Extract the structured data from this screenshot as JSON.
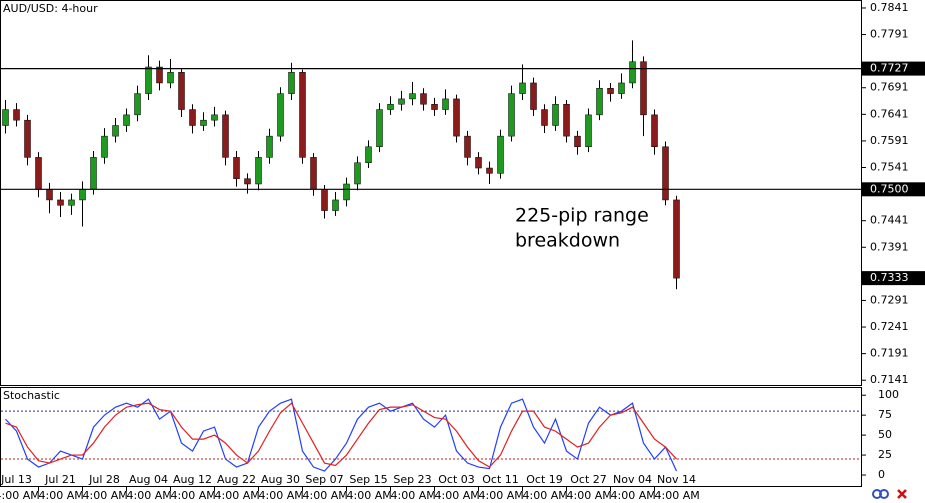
{
  "chart_data": [
    {
      "type": "candlestick",
      "title": "AUD/USD: 4-hour",
      "categories": [
        null,
        "Jul 13",
        null,
        null,
        null,
        "Jul 21",
        null,
        null,
        null,
        "Jul 28",
        null,
        null,
        null,
        "Aug 04",
        null,
        null,
        null,
        "Aug 12",
        null,
        null,
        null,
        "Aug 22",
        null,
        null,
        null,
        "Aug 30",
        null,
        null,
        null,
        "Sep 07",
        null,
        null,
        null,
        "Sep 15",
        null,
        null,
        null,
        "Sep 23",
        null,
        null,
        null,
        "Oct 03",
        null,
        null,
        null,
        "Oct 11",
        null,
        null,
        null,
        "Oct 19",
        null,
        null,
        null,
        "Oct 27",
        null,
        null,
        null,
        "Nov 04",
        null,
        null,
        null,
        "Nov 14"
      ],
      "time_label": "4:00 AM",
      "open": [
        0.762,
        0.765,
        0.763,
        0.756,
        0.75,
        0.748,
        0.747,
        0.748,
        0.75,
        0.756,
        0.76,
        0.762,
        0.764,
        0.768,
        0.773,
        0.77,
        0.772,
        0.765,
        0.762,
        0.763,
        0.764,
        0.756,
        0.752,
        0.751,
        0.756,
        0.76,
        0.768,
        0.772,
        0.756,
        0.75,
        0.746,
        0.748,
        0.751,
        0.755,
        0.758,
        0.765,
        0.766,
        0.767,
        0.768,
        0.766,
        0.765,
        0.767,
        0.76,
        0.756,
        0.754,
        0.753,
        0.76,
        0.768,
        0.77,
        0.765,
        0.762,
        0.766,
        0.76,
        0.758,
        0.764,
        0.769,
        0.768,
        0.77,
        0.774,
        0.764,
        0.758,
        0.748
      ],
      "high": [
        0.7668,
        0.7662,
        0.764,
        0.757,
        0.7512,
        0.7495,
        0.7492,
        0.7515,
        0.7572,
        0.7615,
        0.7634,
        0.7652,
        0.7695,
        0.7752,
        0.7742,
        0.7745,
        0.7728,
        0.766,
        0.7645,
        0.7655,
        0.7648,
        0.7572,
        0.753,
        0.7572,
        0.7614,
        0.7692,
        0.7738,
        0.7725,
        0.7568,
        0.7508,
        0.7495,
        0.7522,
        0.7562,
        0.7592,
        0.7662,
        0.7675,
        0.7685,
        0.7702,
        0.769,
        0.7672,
        0.7688,
        0.7678,
        0.761,
        0.757,
        0.7552,
        0.7612,
        0.7695,
        0.7735,
        0.771,
        0.766,
        0.7675,
        0.7668,
        0.761,
        0.7652,
        0.7705,
        0.77,
        0.7718,
        0.778,
        0.775,
        0.765,
        0.759,
        0.7488
      ],
      "low": [
        0.7605,
        0.7618,
        0.7545,
        0.7485,
        0.7455,
        0.7448,
        0.7452,
        0.743,
        0.749,
        0.7548,
        0.7588,
        0.7608,
        0.7628,
        0.7668,
        0.7686,
        0.769,
        0.7636,
        0.7605,
        0.761,
        0.7618,
        0.7545,
        0.7505,
        0.7492,
        0.7498,
        0.7548,
        0.759,
        0.7668,
        0.7548,
        0.7488,
        0.7445,
        0.745,
        0.7468,
        0.7498,
        0.754,
        0.757,
        0.764,
        0.7648,
        0.7658,
        0.7648,
        0.7638,
        0.764,
        0.7588,
        0.7545,
        0.7528,
        0.751,
        0.752,
        0.759,
        0.7668,
        0.7638,
        0.7606,
        0.761,
        0.7588,
        0.7565,
        0.757,
        0.763,
        0.7665,
        0.767,
        0.769,
        0.76,
        0.7565,
        0.747,
        0.7312
      ],
      "close": [
        0.765,
        0.763,
        0.756,
        0.75,
        0.748,
        0.747,
        0.748,
        0.75,
        0.756,
        0.76,
        0.762,
        0.764,
        0.768,
        0.773,
        0.77,
        0.772,
        0.765,
        0.762,
        0.763,
        0.764,
        0.756,
        0.752,
        0.751,
        0.756,
        0.76,
        0.768,
        0.772,
        0.756,
        0.75,
        0.746,
        0.748,
        0.751,
        0.755,
        0.758,
        0.765,
        0.766,
        0.767,
        0.768,
        0.766,
        0.765,
        0.767,
        0.76,
        0.756,
        0.754,
        0.753,
        0.76,
        0.768,
        0.77,
        0.765,
        0.762,
        0.766,
        0.76,
        0.758,
        0.764,
        0.769,
        0.768,
        0.77,
        0.774,
        0.764,
        0.758,
        0.748,
        0.7333
      ],
      "up_color": "#1e9a1e",
      "down_color": "#8b1c1c",
      "ylim": [
        0.7132,
        0.7856
      ],
      "yticks": [
        0.7841,
        0.7791,
        0.7691,
        0.7641,
        0.7591,
        0.7541,
        0.7441,
        0.7391,
        0.7291,
        0.7241,
        0.7191,
        0.7141
      ],
      "price_labels": [
        0.7727,
        {
          "value": 0.75,
          "label": "0.7500"
        },
        0.7333
      ],
      "price_label_lines": [
        true,
        true,
        false
      ],
      "annotation": [
        "225-pip range",
        "breakdown"
      ]
    },
    {
      "type": "line",
      "title": "Stochastic",
      "series": [
        {
          "color": "#2040ff",
          "values": [
            70,
            55,
            20,
            10,
            15,
            30,
            25,
            20,
            60,
            75,
            85,
            90,
            85,
            95,
            70,
            80,
            40,
            30,
            55,
            60,
            20,
            10,
            15,
            60,
            80,
            90,
            95,
            30,
            10,
            5,
            20,
            40,
            70,
            85,
            90,
            80,
            85,
            90,
            70,
            60,
            75,
            30,
            15,
            10,
            8,
            60,
            90,
            95,
            60,
            40,
            70,
            30,
            20,
            65,
            85,
            75,
            80,
            90,
            40,
            20,
            35,
            5
          ]
        },
        {
          "color": "#e02020",
          "values": [
            65,
            60,
            35,
            18,
            15,
            20,
            25,
            25,
            40,
            60,
            75,
            85,
            88,
            90,
            82,
            80,
            60,
            45,
            45,
            50,
            40,
            25,
            15,
            30,
            55,
            78,
            90,
            65,
            40,
            15,
            12,
            25,
            45,
            65,
            82,
            85,
            85,
            88,
            80,
            72,
            70,
            55,
            35,
            18,
            10,
            25,
            55,
            80,
            80,
            60,
            55,
            45,
            35,
            40,
            60,
            75,
            78,
            85,
            65,
            45,
            35,
            20
          ]
        }
      ],
      "ylim": [
        -15,
        109
      ],
      "yticks": [
        100,
        75,
        50,
        25,
        0
      ],
      "levels": [
        80,
        20
      ],
      "level_colors": [
        "#2a2aa0",
        "#c02020"
      ]
    }
  ]
}
